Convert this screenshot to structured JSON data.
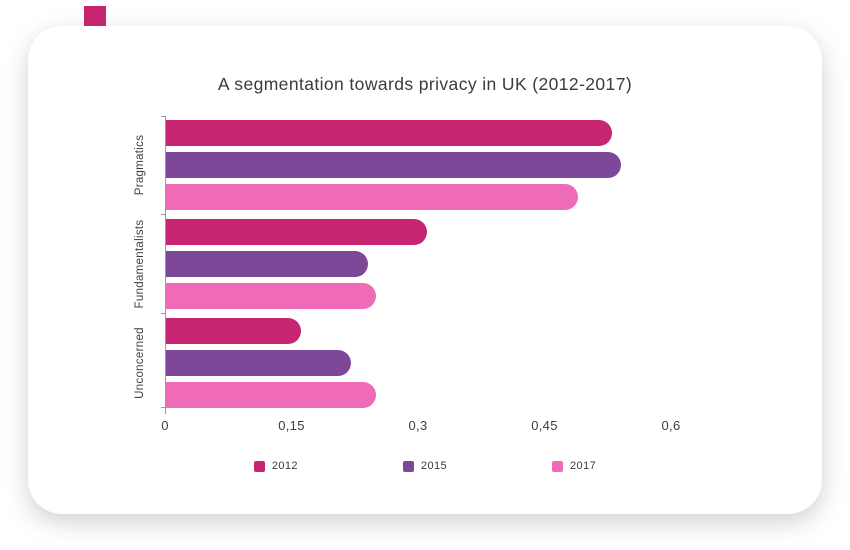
{
  "page": {
    "background": "#ffffff",
    "decoration_color": "#c9256f"
  },
  "chart_data": {
    "type": "bar",
    "orientation": "horizontal",
    "title": "A segmentation towards privacy in UK (2012-2017)",
    "categories": [
      "Pragmatics",
      "Fundamentalists",
      "Unconcerned"
    ],
    "series": [
      {
        "name": "2012",
        "color": "#c72572",
        "values": [
          0.53,
          0.31,
          0.16
        ]
      },
      {
        "name": "2015",
        "color": "#7e4899",
        "values": [
          0.54,
          0.24,
          0.22
        ]
      },
      {
        "name": "2017",
        "color": "#ef6bb8",
        "values": [
          0.49,
          0.25,
          0.25
        ]
      }
    ],
    "xlim": [
      0,
      0.6
    ],
    "x_ticks": [
      {
        "label": "0",
        "value": 0
      },
      {
        "label": "0,15",
        "value": 0.15
      },
      {
        "label": "0,3",
        "value": 0.3
      },
      {
        "label": "0,45",
        "value": 0.45
      },
      {
        "label": "0,6",
        "value": 0.6
      }
    ],
    "decimal_separator": ",",
    "grid": false,
    "legend_position": "bottom"
  }
}
